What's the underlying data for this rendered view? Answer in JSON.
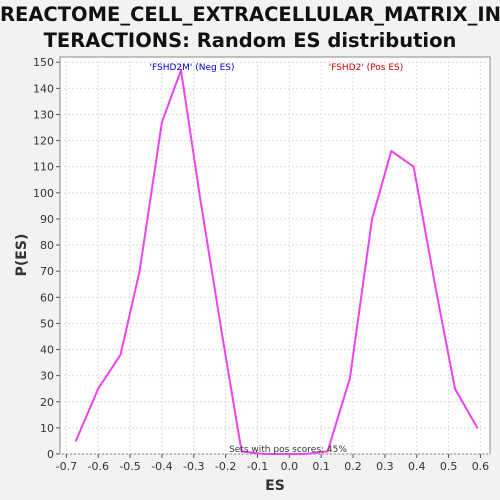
{
  "chart_data": {
    "type": "line",
    "title_line1": "REACTOME_CELL_EXTRACELLULAR_MATRIX_IN",
    "title_line2": "TERACTIONS: Random ES distribution",
    "xlabel": "ES",
    "ylabel": "P(ES)",
    "xlim": [
      -0.72,
      0.63
    ],
    "ylim": [
      0,
      152
    ],
    "xticks": [
      "-0.7",
      "-0.6",
      "-0.5",
      "-0.4",
      "-0.3",
      "-0.2",
      "-0.1",
      "0.0",
      "0.1",
      "0.2",
      "0.3",
      "0.4",
      "0.5",
      "0.6"
    ],
    "yticks": [
      "0",
      "10",
      "20",
      "30",
      "40",
      "50",
      "60",
      "70",
      "80",
      "90",
      "100",
      "110",
      "120",
      "130",
      "140",
      "150"
    ],
    "grid": true,
    "line_color": "#ee44ee",
    "series": [
      {
        "x": [
          -0.67,
          -0.6,
          -0.53,
          -0.47,
          -0.4,
          -0.34,
          -0.28,
          -0.21,
          -0.15,
          -0.08,
          -0.02,
          0.05,
          0.12,
          0.19,
          0.26,
          0.32,
          0.39,
          0.46,
          0.52,
          0.59
        ],
        "y": [
          5,
          25,
          38,
          70,
          127,
          147,
          98,
          45,
          1,
          0,
          0,
          0,
          1,
          29,
          90,
          116,
          110,
          63,
          25,
          10
        ]
      }
    ],
    "annotations": [
      {
        "text": "'FSHD2M' (Neg ES)",
        "color": "#0000cc"
      },
      {
        "text": "'FSHD2' (Pos ES)",
        "color": "#cc0000"
      },
      {
        "text": "Sets with pos scores: 45%",
        "color": "#333333"
      }
    ]
  }
}
